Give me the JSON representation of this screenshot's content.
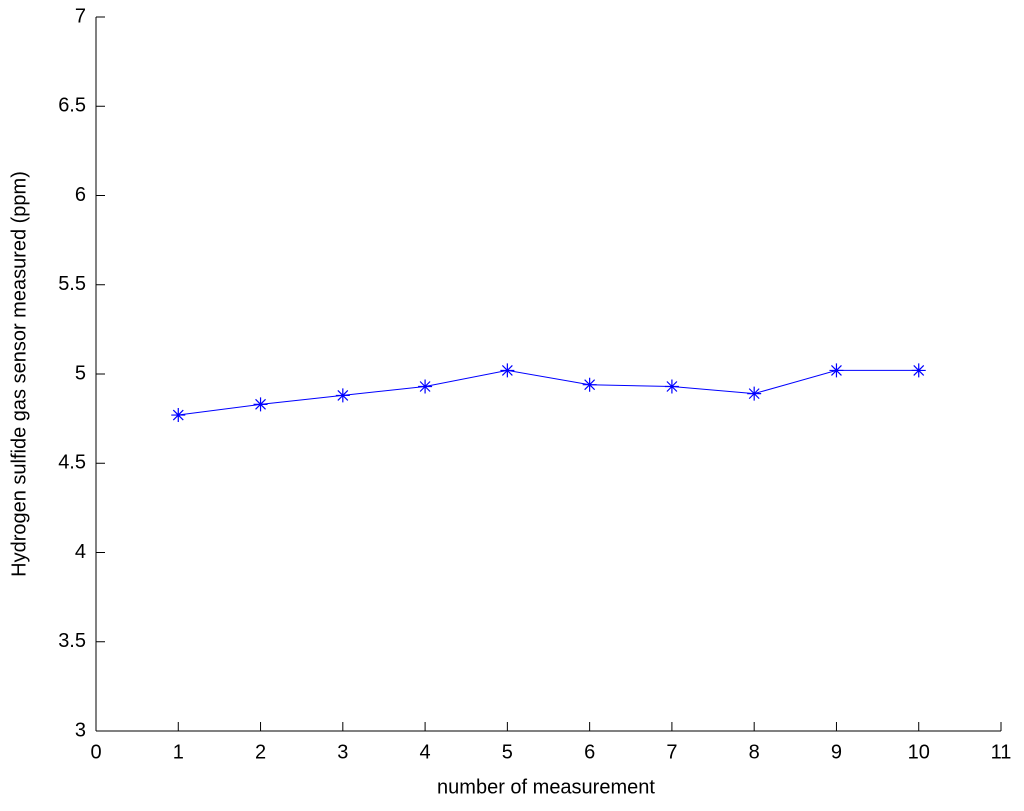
{
  "chart_data": {
    "type": "line",
    "x_label": "number of measurement",
    "y_label": "Hydrogen sulfide gas sensor measured (ppm)",
    "x": [
      1,
      2,
      3,
      4,
      5,
      6,
      7,
      8,
      9,
      10
    ],
    "series": [
      {
        "color": "#0000ff",
        "marker": "asterisk",
        "values": [
          4.77,
          4.83,
          4.88,
          4.93,
          5.02,
          4.94,
          4.93,
          4.89,
          5.02,
          5.02
        ]
      }
    ],
    "xlim": [
      0,
      11
    ],
    "xticks": [
      0,
      1,
      2,
      3,
      4,
      5,
      6,
      7,
      8,
      9,
      10,
      11
    ],
    "ylim": [
      3,
      7
    ],
    "yticks": [
      3,
      3.5,
      4,
      4.5,
      5,
      5.5,
      6,
      6.5,
      7
    ],
    "grid": false
  }
}
